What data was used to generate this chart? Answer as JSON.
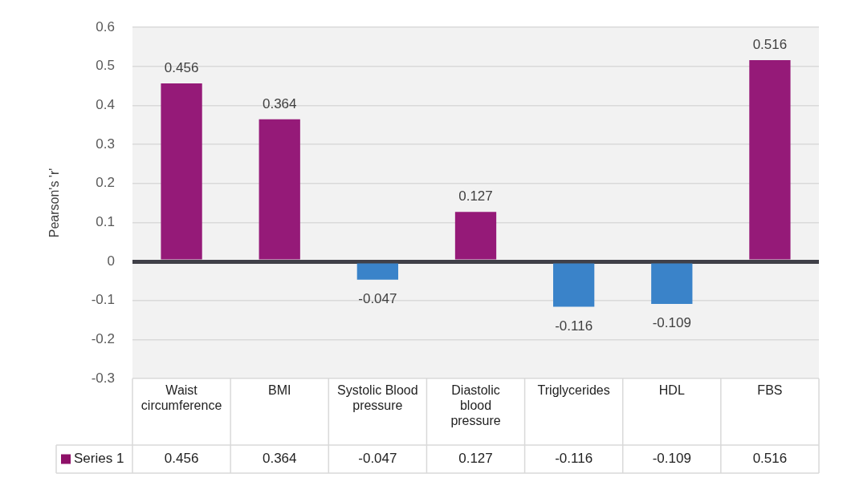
{
  "chart_data": {
    "type": "bar",
    "ylabel": "Pearson's 'r'",
    "categories": [
      "Waist circumference",
      "BMI",
      "Systolic Blood pressure",
      "Diastolic blood pressure",
      "Triglycerides",
      "HDL",
      "FBS"
    ],
    "series": [
      {
        "name": "Series 1",
        "color": "#8e1068",
        "colors": [
          "#951a78",
          "#951a78",
          "#3a83c9",
          "#951a78",
          "#3a83c9",
          "#3a83c9",
          "#951a78"
        ],
        "values": [
          0.456,
          0.364,
          -0.047,
          0.127,
          -0.116,
          -0.109,
          0.516
        ]
      }
    ],
    "ylim": [
      -0.3,
      0.6
    ],
    "yticks": [
      -0.3,
      -0.2,
      -0.1,
      0,
      0.1,
      0.2,
      0.3,
      0.4,
      0.5,
      0.6
    ],
    "annotations": [
      {
        "text": "0.456",
        "x": "Waist circumference",
        "y": 0.456
      },
      {
        "text": "0.364",
        "x": "BMI",
        "y": 0.364
      },
      {
        "text": "-0.047",
        "x": "Systolic Blood pressure",
        "y": -0.047
      },
      {
        "text": "0.127",
        "x": "Diastolic blood pressure",
        "y": 0.127
      },
      {
        "text": "-0.116",
        "x": "Triglycerides",
        "y": -0.116
      },
      {
        "text": "-0.109",
        "x": "HDL",
        "y": -0.109
      },
      {
        "text": "0.516",
        "x": "FBS",
        "y": 0.516
      }
    ],
    "grid": "y",
    "data_labels": true,
    "legend": "bottom"
  }
}
